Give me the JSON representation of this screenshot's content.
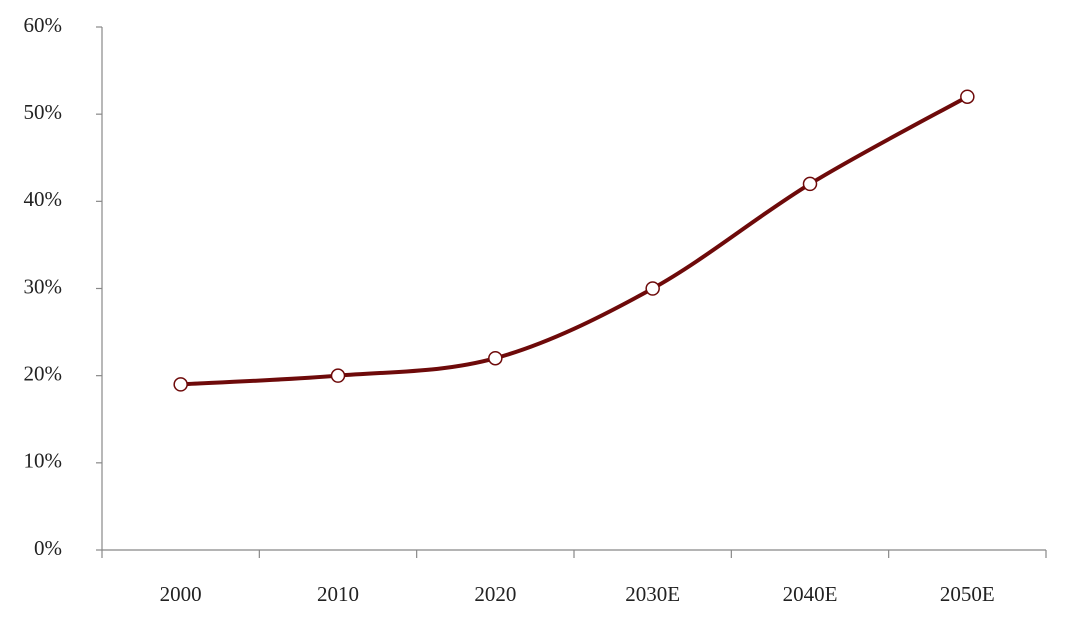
{
  "chart_data": {
    "type": "line",
    "categories": [
      "2000",
      "2010",
      "2020",
      "2030E",
      "2040E",
      "2050E"
    ],
    "series": [
      {
        "color": "#6e0a0a",
        "values": [
          19,
          20,
          22,
          30,
          42,
          52
        ]
      }
    ],
    "ylim": [
      0,
      60
    ],
    "yticks": [
      {
        "value": 0,
        "label": "0%"
      },
      {
        "value": 10,
        "label": "10%"
      },
      {
        "value": 20,
        "label": "20%"
      },
      {
        "value": 30,
        "label": "30%"
      },
      {
        "value": 40,
        "label": "40%"
      },
      {
        "value": 50,
        "label": "50%"
      },
      {
        "value": 60,
        "label": "60%"
      }
    ],
    "smooth": true,
    "grid": false
  }
}
